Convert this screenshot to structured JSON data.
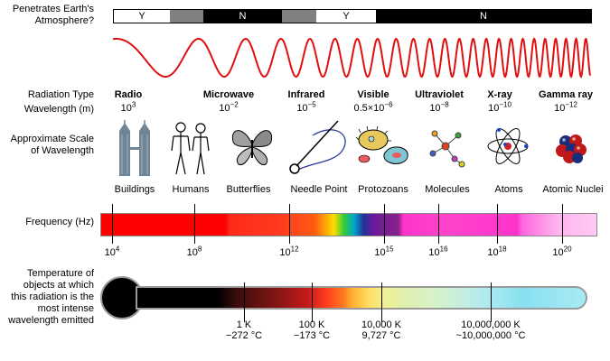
{
  "left_labels": {
    "atmosphere": [
      "Penetrates Earth's",
      "Atmosphere?"
    ],
    "radiation_type": "Radiation Type",
    "wavelength": "Wavelength (m)",
    "scale": [
      "Approximate Scale",
      "of Wavelength"
    ],
    "frequency": "Frequency (Hz)",
    "temperature": [
      "Temperature of",
      "objects at which",
      "this radiation is the",
      "most intense",
      "wavelength emitted"
    ]
  },
  "atmosphere_bar": {
    "segments": [
      {
        "label": "Y",
        "color": "#ffffff"
      },
      {
        "label": "",
        "color": "#808080"
      },
      {
        "label": "N",
        "color": "#000000"
      },
      {
        "label": "",
        "color": "#808080"
      },
      {
        "label": "Y",
        "color": "#ffffff"
      },
      {
        "label": "N",
        "color": "#000000"
      }
    ]
  },
  "radiation_types": [
    {
      "name": "Radio",
      "wl_base": "10",
      "wl_exp": "3"
    },
    {
      "name": "Microwave",
      "wl_base": "10",
      "wl_exp": "−2"
    },
    {
      "name": "Infrared",
      "wl_base": "10",
      "wl_exp": "−5"
    },
    {
      "name": "Visible",
      "wl_base": "0.5×10",
      "wl_exp": "−6"
    },
    {
      "name": "Ultraviolet",
      "wl_base": "10",
      "wl_exp": "−8"
    },
    {
      "name": "X-ray",
      "wl_base": "10",
      "wl_exp": "−10"
    },
    {
      "name": "Gamma ray",
      "wl_base": "10",
      "wl_exp": "−12"
    }
  ],
  "scale_objects": [
    {
      "label": "Buildings",
      "icon": "buildings-icon"
    },
    {
      "label": "Humans",
      "icon": "humans-icon"
    },
    {
      "label": "Butterflies",
      "icon": "butterfly-icon"
    },
    {
      "label": "Needle Point",
      "icon": "needle-icon"
    },
    {
      "label": "Protozoans",
      "icon": "protozoan-icon"
    },
    {
      "label": "Molecules",
      "icon": "molecule-icon"
    },
    {
      "label": "Atoms",
      "icon": "atom-icon"
    },
    {
      "label": "Atomic Nuclei",
      "icon": "nucleus-icon"
    }
  ],
  "frequency_ticks": [
    {
      "base": "10",
      "exp": "4"
    },
    {
      "base": "10",
      "exp": "8"
    },
    {
      "base": "10",
      "exp": "12"
    },
    {
      "base": "10",
      "exp": "15"
    },
    {
      "base": "10",
      "exp": "16"
    },
    {
      "base": "10",
      "exp": "18"
    },
    {
      "base": "10",
      "exp": "20"
    }
  ],
  "temperature_ticks": [
    {
      "k": "1 K",
      "c": "−272 °C"
    },
    {
      "k": "100 K",
      "c": "−173 °C"
    },
    {
      "k": "10,000 K",
      "c": "9,727 °C"
    },
    {
      "k": "10,000,000 K",
      "c": "~10,000,000 °C"
    }
  ]
}
